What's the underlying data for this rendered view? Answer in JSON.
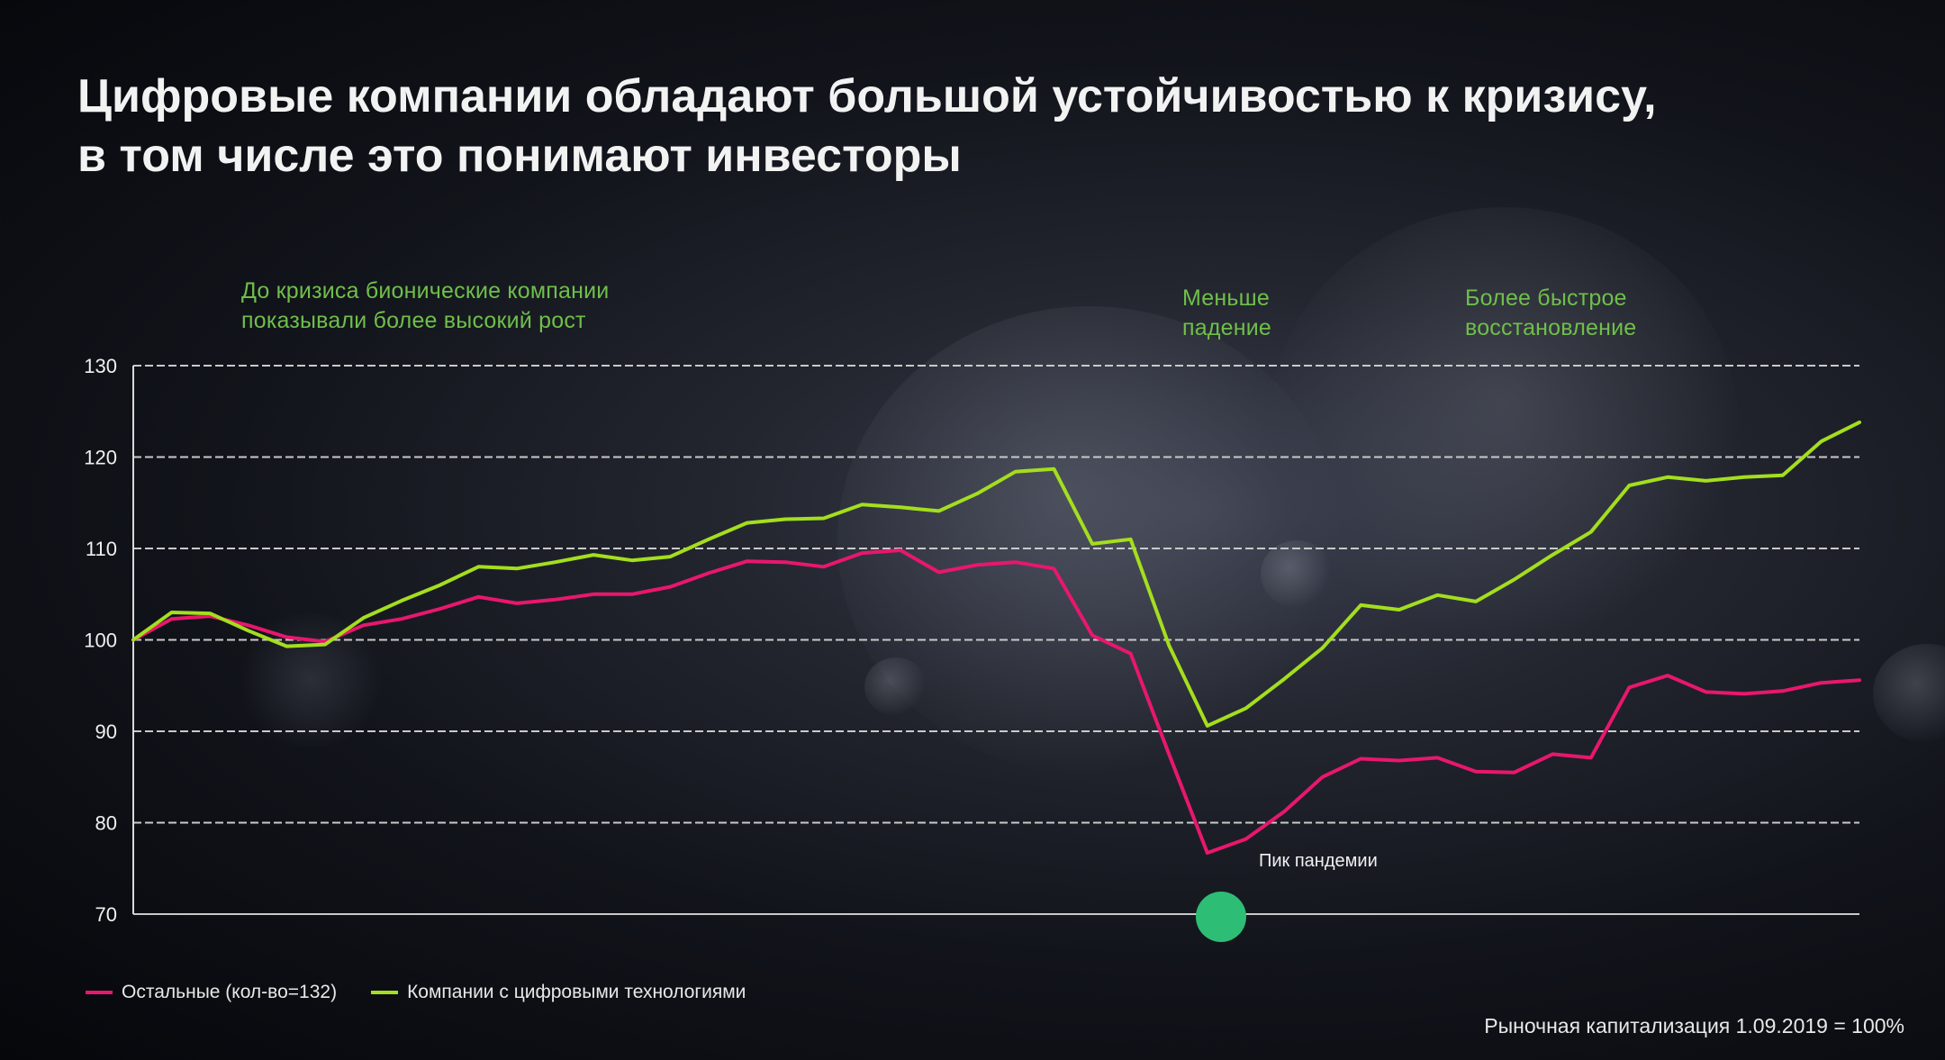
{
  "title": {
    "line1": "Цифровые компании обладают большой устойчивостью к кризису,",
    "line2": "в том числе это понимают инвесторы"
  },
  "annotations": {
    "pre_crisis": [
      "До кризиса бионические компании",
      "показывали более высокий рост"
    ],
    "smaller_drop": [
      "Меньше",
      "падение"
    ],
    "faster_recovery": [
      "Более быстрое",
      "восстановление"
    ],
    "pandemic_peak": "Пик пандемии"
  },
  "footnote": "Рыночная капитализация 1.09.2019 = 100%",
  "colors": {
    "others": "#e8176e",
    "digital": "#a4de1e",
    "annotation": "#6fbf4a",
    "marker": "#2ebd74",
    "grid": "#c9c9c9"
  },
  "chart_data": {
    "type": "line",
    "ylim": [
      70,
      130
    ],
    "yticks": [
      130,
      120,
      110,
      100,
      90,
      80,
      70
    ],
    "grid": true,
    "legend_position": "bottom-left",
    "pandemic_peak_index": 39,
    "series": [
      {
        "name": "Остальные (кол-во=132)",
        "color": "#e8176e",
        "values": [
          100,
          102.3,
          102.6,
          101.6,
          100.3,
          99.8,
          101.6,
          102.3,
          103.4,
          104.7,
          104,
          104.4,
          105,
          105,
          105.8,
          107.3,
          108.6,
          108.5,
          108,
          109.5,
          109.8,
          107.4,
          108.2,
          108.5,
          107.8,
          100.5,
          98.5,
          87.5,
          76.7,
          78.2,
          81.2,
          85,
          87,
          86.8,
          87.1,
          85.6,
          85.5,
          87.5,
          87.1,
          94.8,
          96.1,
          94.3,
          94.1,
          94.4,
          95.3,
          95.6
        ]
      },
      {
        "name": "Компании с цифровыми технологиями",
        "color": "#a4de1e",
        "values": [
          100,
          103,
          102.9,
          101,
          99.3,
          99.5,
          102.4,
          104.3,
          106,
          108,
          107.8,
          108.5,
          109.3,
          108.7,
          109.1,
          111,
          112.8,
          113.2,
          113.3,
          114.8,
          114.5,
          114.1,
          116,
          118.4,
          118.7,
          110.5,
          111,
          99.4,
          90.6,
          92.5,
          95.7,
          99.1,
          103.8,
          103.3,
          104.9,
          104.2,
          106.6,
          109.3,
          111.8,
          116.9,
          117.8,
          117.4,
          117.8,
          118,
          121.7,
          123.8
        ]
      }
    ]
  }
}
